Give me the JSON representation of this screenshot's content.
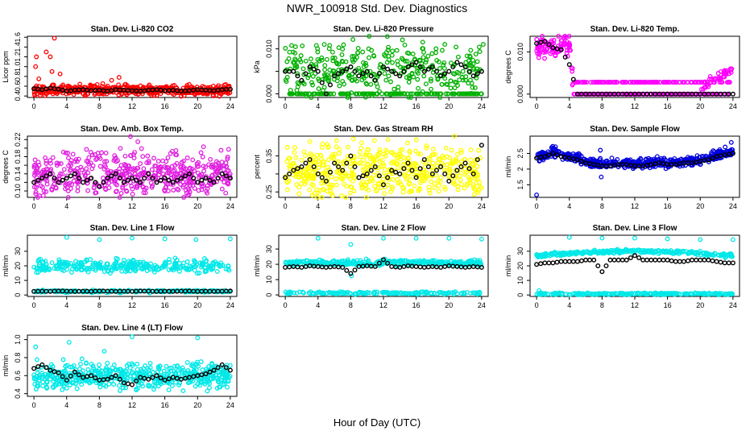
{
  "page": {
    "title": "NWR_100918 Std. Dev. Diagnostics",
    "xlabel": "Hour of Day (UTC)"
  },
  "chart_data": [
    {
      "type": "scatter",
      "title": "Stan. Dev. Li-820 CO2",
      "ylabel": "Licor ppm",
      "color": "#ff0000",
      "yticks": [
        0.4,
        0.6,
        0.8,
        1.0,
        1.2,
        1.4,
        1.6
      ],
      "ylim": [
        0.37,
        1.62
      ],
      "xlim": [
        -0.8,
        24.8
      ],
      "xticks": [
        0,
        4,
        8,
        12,
        16,
        20,
        24
      ],
      "base": [
        0.52,
        0.05
      ],
      "hourly": [
        0.55,
        0.53,
        0.56,
        0.54,
        0.5,
        0.52,
        0.53,
        0.51,
        0.52,
        0.5,
        0.53,
        0.52,
        0.51,
        0.5,
        0.52,
        0.53,
        0.51,
        0.52,
        0.5,
        0.51,
        0.53,
        0.52,
        0.51,
        0.53,
        0.54
      ],
      "extra": [
        [
          0.2,
          1.0
        ],
        [
          0.3,
          1.2
        ],
        [
          1.5,
          1.3
        ],
        [
          2.0,
          1.2
        ],
        [
          2.5,
          1.58
        ],
        [
          2.2,
          0.9
        ],
        [
          3.2,
          0.85
        ],
        [
          9.5,
          0.72
        ],
        [
          10.4,
          0.78
        ],
        [
          0.6,
          0.75
        ]
      ]
    },
    {
      "type": "scatter",
      "title": "Stan. Dev. Li-820 Pressure",
      "ylabel": "kPa",
      "color": "#00b000",
      "yticks": [
        0.0,
        0.005,
        0.01
      ],
      "yticklabels": [
        "0.000",
        "",
        "0.010"
      ],
      "ylim": [
        -0.0008,
        0.0128
      ],
      "xlim": [
        -0.8,
        24.8
      ],
      "xticks": [
        0,
        4,
        8,
        12,
        16,
        20,
        24
      ],
      "base": [
        0.0055,
        0.003
      ],
      "zeroFrac": 0.35,
      "hourly": [
        0.005,
        0.005,
        0.003,
        0.006,
        0.005,
        0.0,
        0.004,
        0.005,
        0.006,
        0.004,
        0.005,
        0.003,
        0.006,
        0.005,
        0.004,
        0.006,
        0.007,
        0.005,
        0.006,
        0.004,
        0.005,
        0.007,
        0.006,
        0.004,
        0.005
      ],
      "extra": [
        [
          16.8,
          0.0115
        ],
        [
          19.5,
          0.011
        ],
        [
          24.2,
          0.011
        ],
        [
          10.2,
          0.01
        ]
      ]
    },
    {
      "type": "scatter",
      "title": "Stan. Dev. Li-820 Temp.",
      "ylabel": "degrees C",
      "color": "#ff00ff",
      "yticks": [
        0.0,
        0.01
      ],
      "yticklabels": [
        "0.000",
        "0.010"
      ],
      "ylim": [
        -0.0008,
        0.0137
      ],
      "xlim": [
        -0.8,
        24.8
      ],
      "xticks": [
        0,
        4,
        8,
        12,
        16,
        20,
        24
      ],
      "mode": "temp",
      "hourly": [
        0.012,
        0.0125,
        0.011,
        0.0105,
        0.007,
        0.0,
        0.0,
        0.0,
        0.0,
        0.0,
        0.0,
        0.0,
        0.0,
        0.0,
        0.0,
        0.0,
        0.0,
        0.0,
        0.0,
        0.0,
        0.0,
        0.0,
        0.0,
        0.0,
        0.0
      ]
    },
    {
      "type": "scatter",
      "title": "Stan. Dev. Amb. Box Temp.",
      "ylabel": "degrees C",
      "color": "#e020e0",
      "yticks": [
        0.1,
        0.12,
        0.14,
        0.16,
        0.18,
        0.2,
        0.22
      ],
      "yticklabels": [
        "0.10",
        "",
        "0.14",
        "",
        "0.18",
        "",
        "0.22"
      ],
      "ylim": [
        0.085,
        0.228
      ],
      "xlim": [
        -0.8,
        24.8
      ],
      "xticks": [
        0,
        4,
        8,
        12,
        16,
        20,
        24
      ],
      "base": [
        0.14,
        0.025
      ],
      "hourly": [
        0.12,
        0.13,
        0.14,
        0.12,
        0.13,
        0.14,
        0.12,
        0.13,
        0.11,
        0.13,
        0.14,
        0.12,
        0.13,
        0.12,
        0.14,
        0.12,
        0.13,
        0.12,
        0.13,
        0.14,
        0.12,
        0.13,
        0.12,
        0.14,
        0.13
      ],
      "extra": [
        [
          11.8,
          0.227
        ],
        [
          12.7,
          0.215
        ]
      ]
    },
    {
      "type": "scatter",
      "title": "Stan. Dev. Gas Stream RH",
      "ylabel": "percent",
      "color": "#ffff00",
      "yticks": [
        0.25,
        0.3,
        0.35
      ],
      "yticklabels": [
        "0.25",
        "",
        "0.35"
      ],
      "ylim": [
        0.235,
        0.405
      ],
      "xlim": [
        -0.8,
        24.8
      ],
      "xticks": [
        0,
        4,
        8,
        12,
        16,
        20,
        24
      ],
      "base": [
        0.31,
        0.035
      ],
      "hourly": [
        0.29,
        0.31,
        0.32,
        0.34,
        0.3,
        0.28,
        0.33,
        0.31,
        0.35,
        0.29,
        0.3,
        0.32,
        0.27,
        0.31,
        0.3,
        0.33,
        0.29,
        0.34,
        0.3,
        0.32,
        0.28,
        0.31,
        0.33,
        0.3,
        0.38
      ],
      "extra": [
        [
          3.0,
          0.39
        ],
        [
          16.0,
          0.395
        ]
      ]
    },
    {
      "type": "scatter",
      "title": "Stan. Dev. Sample Flow",
      "ylabel": "ml/min",
      "color": "#0000dd",
      "yticks": [
        1.5,
        2.0,
        2.5
      ],
      "ylim": [
        1.1,
        3.05
      ],
      "xlim": [
        -0.8,
        24.8
      ],
      "xticks": [
        0,
        4,
        8,
        12,
        16,
        20,
        24
      ],
      "mode": "flow",
      "hourly": [
        2.35,
        2.4,
        2.5,
        2.4,
        2.35,
        2.3,
        2.2,
        2.15,
        2.1,
        2.1,
        2.15,
        2.15,
        2.1,
        2.1,
        2.15,
        2.2,
        2.15,
        2.15,
        2.2,
        2.2,
        2.25,
        2.3,
        2.4,
        2.45,
        2.5
      ],
      "extra": [
        [
          0.0,
          1.18
        ],
        [
          7.8,
          2.6
        ],
        [
          7.9,
          1.75
        ],
        [
          23.8,
          2.85
        ]
      ]
    },
    {
      "type": "scatter",
      "title": "Stan. Dev. Line 1 Flow",
      "ylabel": "ml/min",
      "color": "#00e8e8",
      "yticks": [
        0,
        10,
        20,
        30
      ],
      "ylim": [
        -1,
        41
      ],
      "xlim": [
        -0.8,
        24.8
      ],
      "xticks": [
        0,
        4,
        8,
        12,
        16,
        20,
        24
      ],
      "band": [
        20,
        2.2
      ],
      "low": [
        2.5,
        0.4
      ],
      "hourly": [
        2.5,
        2.6,
        2.5,
        2.7,
        2.6,
        2.5,
        2.6,
        2.5,
        2.7,
        2.6,
        2.5,
        2.6,
        2.5,
        2.7,
        2.6,
        2.5,
        2.6,
        2.5,
        2.6,
        2.7,
        2.5,
        2.6,
        2.5,
        2.6,
        2.7
      ],
      "extra": [
        [
          4.0,
          39.5
        ],
        [
          8.0,
          38
        ],
        [
          12.0,
          39
        ],
        [
          16.0,
          38.5
        ],
        [
          19.8,
          38
        ],
        [
          24.0,
          38.5
        ],
        [
          20.2,
          15
        ]
      ]
    },
    {
      "type": "scatter",
      "title": "Stan. Dev. Line 2 Flow",
      "ylabel": "ml/min",
      "color": "#00e8e8",
      "yticks": [
        0,
        10,
        20,
        30
      ],
      "ylim": [
        -1,
        39
      ],
      "xlim": [
        -0.8,
        24.8
      ],
      "xticks": [
        0,
        4,
        8,
        12,
        16,
        20,
        24
      ],
      "band": [
        21,
        0.9
      ],
      "low": [
        1.2,
        0.4
      ],
      "hourly": [
        18,
        18.5,
        18,
        19,
        18.5,
        18,
        18.5,
        18,
        14,
        18.5,
        19,
        18.5,
        23,
        18.5,
        18,
        19,
        18.5,
        18,
        18.5,
        18,
        19,
        18.5,
        18,
        18.5,
        18
      ],
      "extra": [
        [
          4.0,
          37
        ],
        [
          8.0,
          33
        ],
        [
          12.0,
          37
        ],
        [
          16.0,
          37
        ],
        [
          20.0,
          37
        ],
        [
          24.0,
          36.5
        ],
        [
          8.1,
          12.5
        ]
      ]
    },
    {
      "type": "scatter",
      "title": "Stan. Dev. Line 3 Flow",
      "ylabel": "ml/min",
      "color": "#00e8e8",
      "yticks": [
        0,
        10,
        20,
        30
      ],
      "ylim": [
        -1,
        41
      ],
      "xlim": [
        -0.8,
        24.8
      ],
      "xticks": [
        0,
        4,
        8,
        12,
        16,
        20,
        24
      ],
      "mode": "line3",
      "low": [
        1.2,
        0.4
      ],
      "hourly": [
        21,
        22,
        22,
        23,
        23,
        23,
        24,
        24,
        16,
        24,
        24,
        24,
        27,
        24,
        24,
        24,
        24,
        23,
        23,
        24,
        24,
        24,
        23,
        22,
        22
      ],
      "extra": [
        [
          4.0,
          39.5
        ],
        [
          8.0,
          39
        ],
        [
          12.0,
          39
        ],
        [
          16.0,
          38.5
        ],
        [
          20.0,
          38
        ],
        [
          24.0,
          38
        ],
        [
          0.3,
          3
        ]
      ]
    },
    {
      "type": "scatter",
      "title": "Stan. Dev. Line 4 (LT) Flow",
      "ylabel": "ml/min",
      "color": "#00e8e8",
      "yticks": [
        0.4,
        0.6,
        0.8,
        1.0
      ],
      "ylim": [
        0.37,
        1.05
      ],
      "xlim": [
        -0.8,
        24.8
      ],
      "xticks": [
        0,
        4,
        8,
        12,
        16,
        20,
        24
      ],
      "base": [
        0.6,
        0.07
      ],
      "hourly": [
        0.68,
        0.72,
        0.66,
        0.63,
        0.55,
        0.64,
        0.58,
        0.6,
        0.55,
        0.56,
        0.6,
        0.52,
        0.5,
        0.58,
        0.56,
        0.6,
        0.55,
        0.58,
        0.56,
        0.58,
        0.6,
        0.62,
        0.66,
        0.72,
        0.66
      ],
      "extra": [
        [
          12.0,
          1.03
        ],
        [
          20.0,
          1.02
        ],
        [
          0.2,
          0.92
        ],
        [
          4.3,
          0.97
        ],
        [
          8.6,
          0.87
        ],
        [
          4.0,
          0.46
        ],
        [
          12.5,
          0.45
        ]
      ]
    }
  ]
}
